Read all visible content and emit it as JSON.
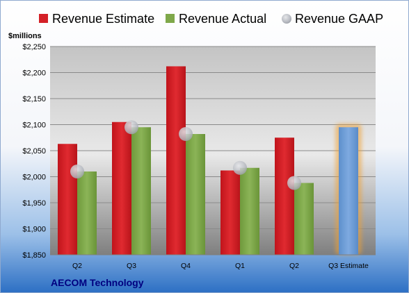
{
  "chart_data": {
    "type": "bar",
    "title": "AECOM Technology",
    "ylabel": "$millions",
    "categories": [
      "Q2",
      "Q3",
      "Q4",
      "Q1",
      "Q2",
      "Q3 Estimate"
    ],
    "series": [
      {
        "name": "Revenue Estimate",
        "kind": "bar",
        "color": "#d42027",
        "values": [
          2063,
          2105,
          2212,
          2012,
          2075,
          null
        ]
      },
      {
        "name": "Revenue Actual",
        "kind": "bar",
        "color": "#7fa84a",
        "values": [
          2010,
          2095,
          2082,
          2017,
          1988,
          null
        ]
      },
      {
        "name": "Revenue GAAP",
        "kind": "marker",
        "color": "#b9bcc4",
        "values": [
          2010,
          2095,
          2082,
          2017,
          1988,
          null
        ]
      }
    ],
    "highlight": {
      "category": "Q3 Estimate",
      "value": 2095,
      "color": "#6f9fd8",
      "glow": "#f0a030"
    },
    "ylim": [
      1850,
      2250
    ],
    "yticks": [
      1850,
      1900,
      1950,
      2000,
      2050,
      2100,
      2150,
      2200,
      2250
    ],
    "ytick_labels": [
      "$1,850",
      "$1,900",
      "$1,950",
      "$2,000",
      "$2,050",
      "$2,100",
      "$2,150",
      "$2,200",
      "$2,250"
    ],
    "grid": true,
    "legend": "top"
  }
}
